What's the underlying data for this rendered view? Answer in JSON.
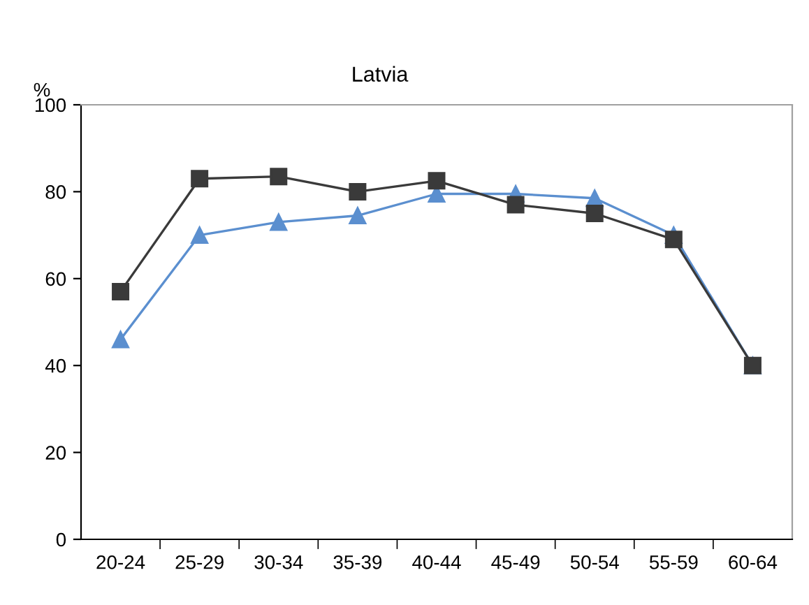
{
  "chart_data": {
    "type": "line",
    "title": "Latvia",
    "ylabel": "%",
    "categories": [
      "20-24",
      "25-29",
      "30-34",
      "35-39",
      "40-44",
      "45-49",
      "50-54",
      "55-59",
      "60-64"
    ],
    "series": [
      {
        "color": "#3a3a3a",
        "marker": "square",
        "values": [
          57,
          83,
          83.5,
          80,
          82.5,
          77,
          75,
          69,
          40
        ]
      },
      {
        "color": "#5b8fcf",
        "marker": "triangle",
        "values": [
          46,
          70,
          73,
          74.5,
          79.5,
          79.5,
          78.5,
          70,
          40
        ]
      }
    ],
    "ylim": [
      0,
      100
    ],
    "yticks": [
      0,
      20,
      40,
      60,
      80,
      100
    ],
    "grid": false,
    "legend": false,
    "line_style": "solid"
  }
}
